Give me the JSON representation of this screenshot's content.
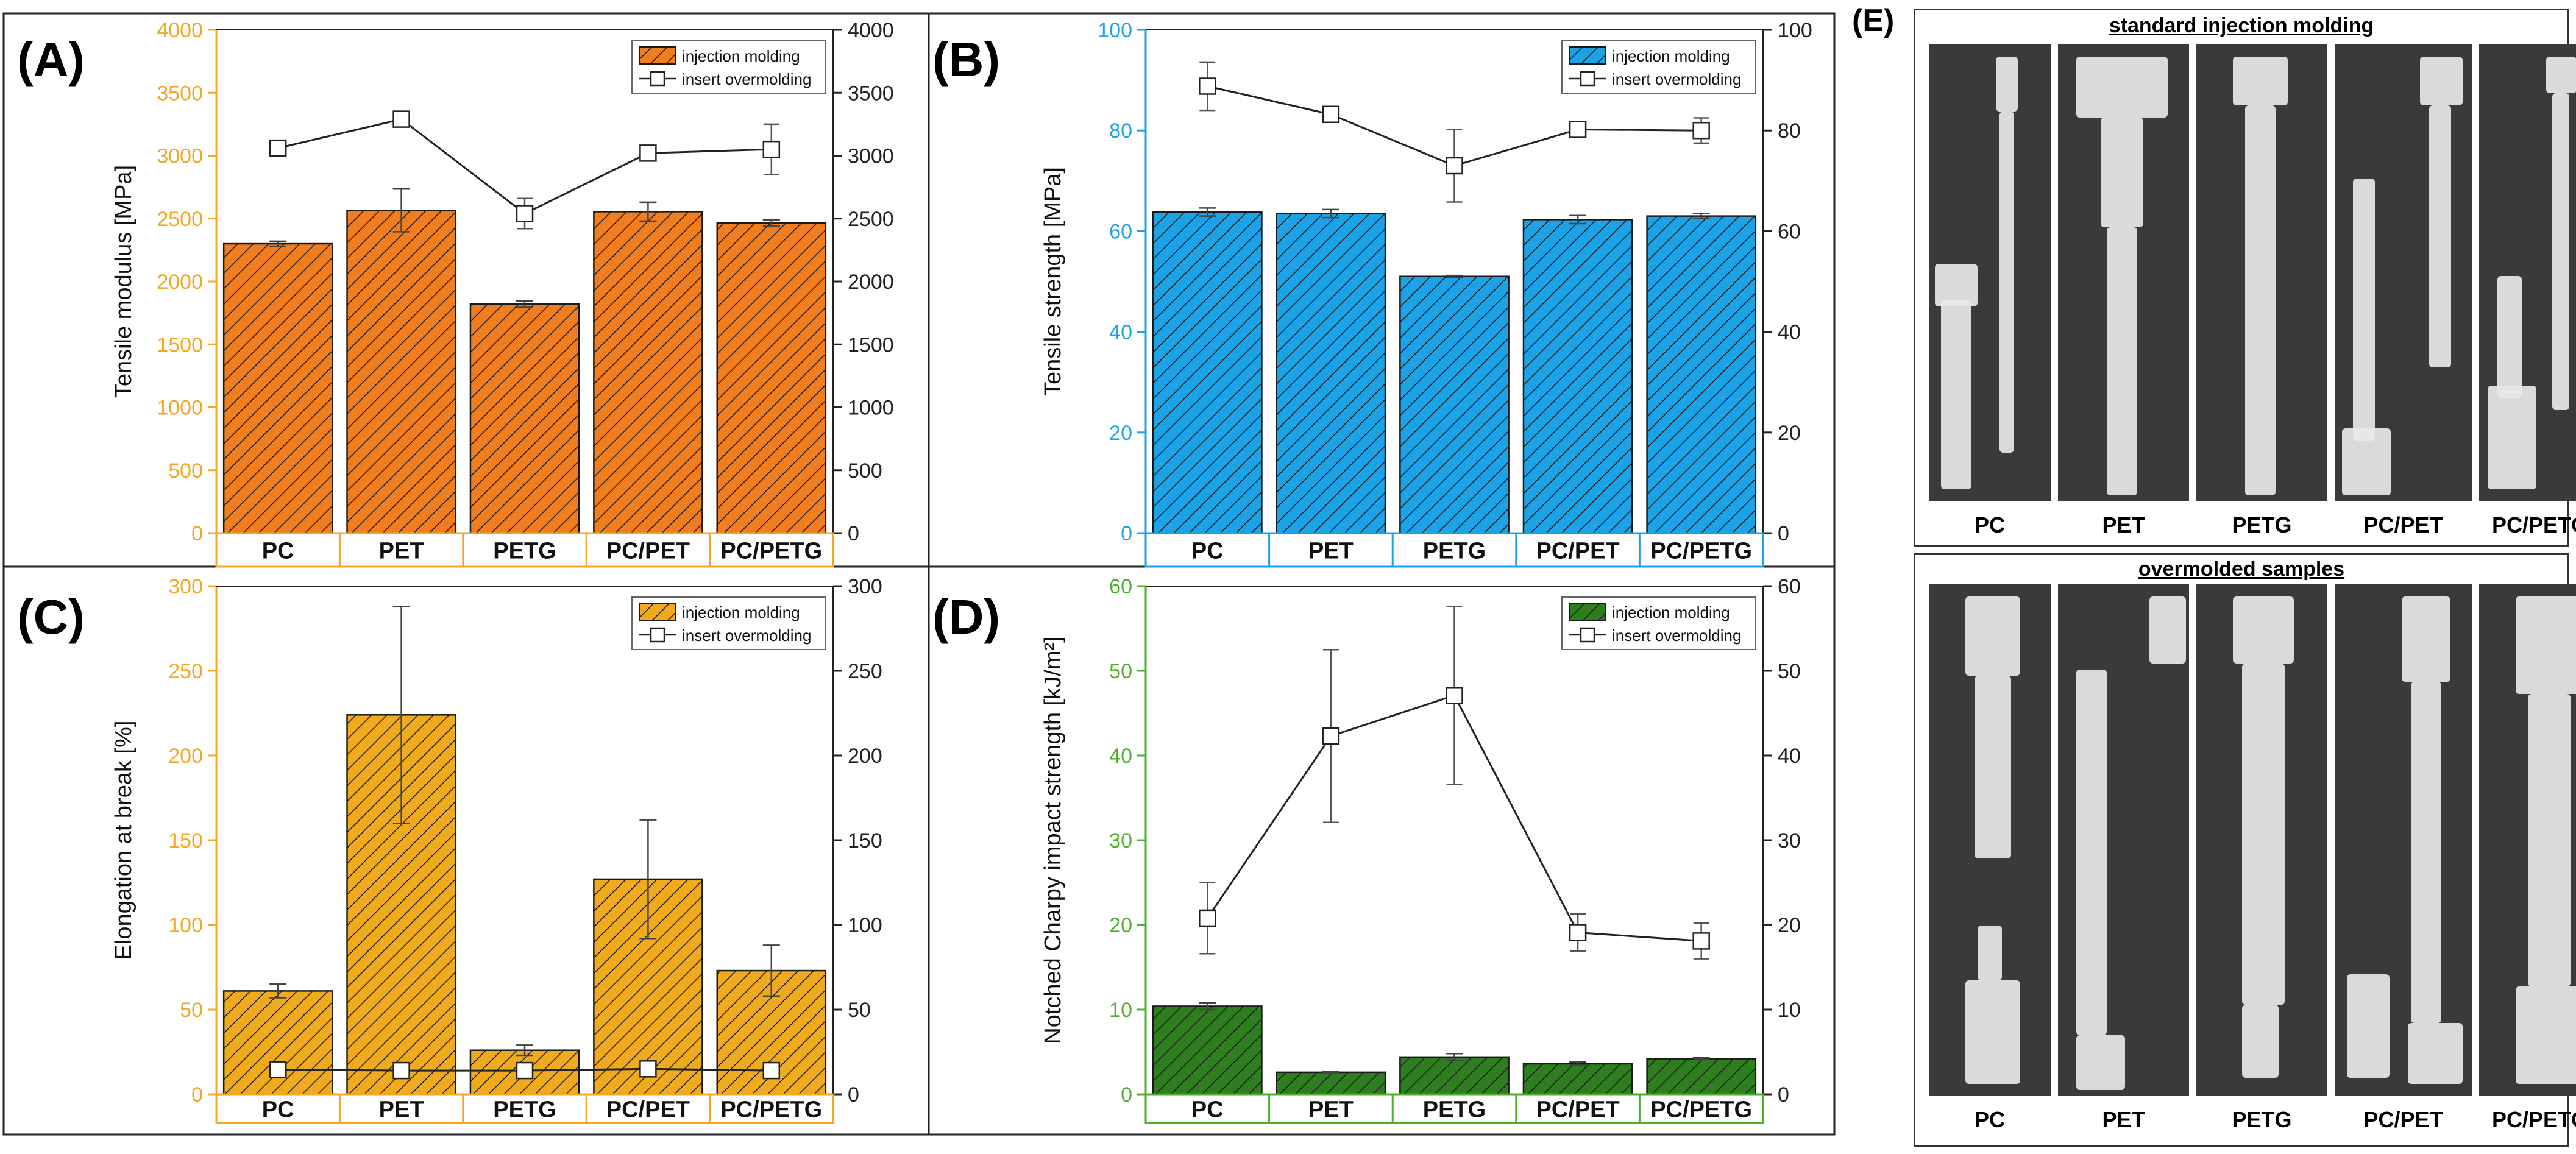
{
  "chart_data": [
    {
      "id": "A",
      "panel_label": "(A)",
      "type": "bar+line",
      "ylabel": "Tensile modulus [MPa]",
      "ylim": [
        0,
        4000
      ],
      "yticks": [
        0,
        500,
        1000,
        1500,
        2000,
        2500,
        3000,
        3500,
        4000
      ],
      "categories": [
        "PC",
        "PET",
        "PETG",
        "PC/PET",
        "PC/PETG"
      ],
      "color": "#F07D1E",
      "axis_color": "#F5A623",
      "legend_position": "top-right",
      "series": [
        {
          "name": "injection molding",
          "kind": "bar",
          "values": [
            2300,
            2565,
            1820,
            2555,
            2465
          ],
          "errors": [
            20,
            170,
            25,
            75,
            25
          ]
        },
        {
          "name": "insert overmolding",
          "kind": "line",
          "values": [
            3060,
            3290,
            2540,
            3020,
            3050
          ],
          "errors": [
            20,
            20,
            120,
            20,
            200
          ]
        }
      ]
    },
    {
      "id": "B",
      "panel_label": "(B)",
      "type": "bar+line",
      "ylabel": "Tensile strength [MPa]",
      "ylim": [
        0,
        100
      ],
      "yticks": [
        0,
        20,
        40,
        60,
        80,
        100
      ],
      "categories": [
        "PC",
        "PET",
        "PETG",
        "PC/PET",
        "PC/PETG"
      ],
      "color": "#1CA2E6",
      "axis_color": "#1CA2E6",
      "legend_position": "top-right",
      "series": [
        {
          "name": "injection molding",
          "kind": "bar",
          "values": [
            63.8,
            63.5,
            51,
            62.3,
            63
          ],
          "errors": [
            0.8,
            0.8,
            0.2,
            0.8,
            0.5
          ]
        },
        {
          "name": "insert overmolding",
          "kind": "line",
          "values": [
            88.8,
            83.2,
            73,
            80.2,
            80
          ],
          "errors": [
            4.8,
            1.5,
            7.2,
            1,
            2.5
          ]
        }
      ]
    },
    {
      "id": "C",
      "panel_label": "(C)",
      "type": "bar+line",
      "ylabel": "Elongation at break [%]",
      "ylim": [
        0,
        300
      ],
      "yticks": [
        0,
        50,
        100,
        150,
        200,
        250,
        300
      ],
      "categories": [
        "PC",
        "PET",
        "PETG",
        "PC/PET",
        "PC/PETG"
      ],
      "color": "#F0AA1E",
      "axis_color": "#F5A623",
      "legend_position": "top-right",
      "series": [
        {
          "name": "injection molding",
          "kind": "bar",
          "values": [
            61,
            224,
            26,
            127,
            73
          ],
          "errors": [
            4,
            64,
            3,
            35,
            15
          ]
        },
        {
          "name": "insert overmolding",
          "kind": "line",
          "values": [
            14.5,
            14,
            14,
            15,
            14
          ],
          "errors": [
            1,
            1,
            1,
            1,
            1
          ]
        }
      ]
    },
    {
      "id": "D",
      "panel_label": "(D)",
      "type": "bar+line",
      "ylabel": "Notched Charpy impact strength [kJ/m²]",
      "ylim": [
        0,
        60
      ],
      "yticks": [
        0,
        10,
        20,
        30,
        40,
        50,
        60
      ],
      "categories": [
        "PC",
        "PET",
        "PETG",
        "PC/PET",
        "PC/PETG"
      ],
      "color": "#2E7D1E",
      "axis_color": "#4CAF2A",
      "legend_position": "top-right",
      "series": [
        {
          "name": "injection molding",
          "kind": "bar",
          "values": [
            10.4,
            2.6,
            4.4,
            3.6,
            4.2
          ],
          "errors": [
            0.4,
            0.1,
            0.4,
            0.2,
            0.1
          ]
        },
        {
          "name": "insert overmolding",
          "kind": "line",
          "values": [
            20.8,
            42.3,
            47.1,
            19.1,
            18.1
          ],
          "errors": [
            4.2,
            10.2,
            10.5,
            2.2,
            2.1
          ]
        }
      ]
    }
  ],
  "panel_e": {
    "label": "(E)",
    "standard": {
      "title": "standard injection molding",
      "labels": [
        "PC",
        "PET",
        "PETG",
        "PC/PET",
        "PC/PETG"
      ]
    },
    "overmolded": {
      "title": "overmolded samples",
      "labels": [
        "PC",
        "PET",
        "PETG",
        "PC/PET",
        "PC/PETG"
      ]
    }
  }
}
